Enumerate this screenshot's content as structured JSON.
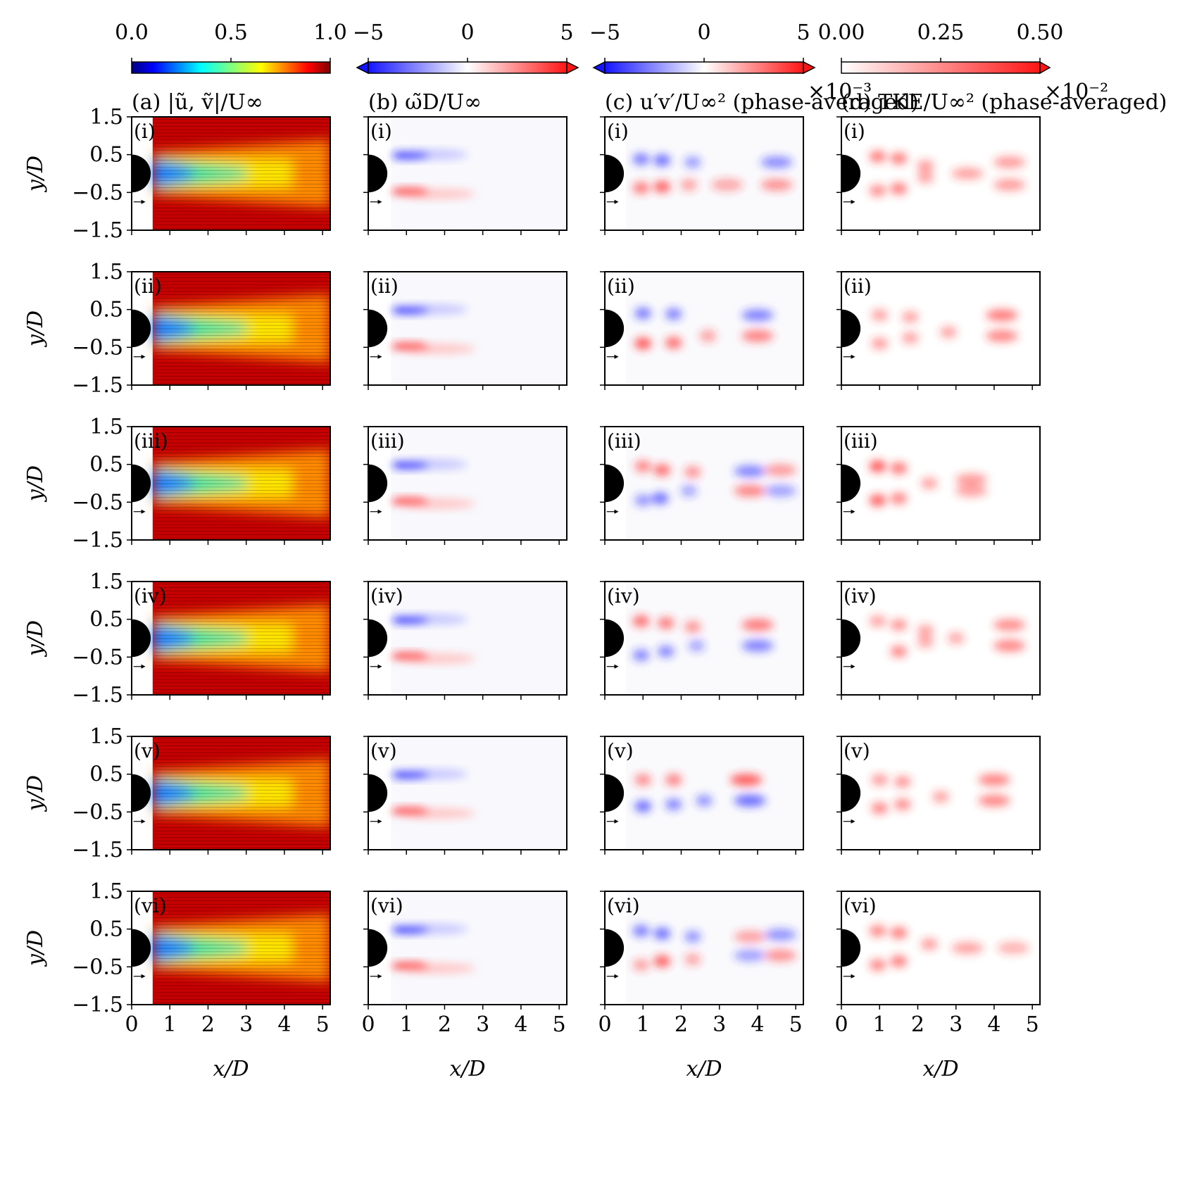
{
  "chart_data": {
    "type": "heatmap",
    "grid": {
      "rows": 6,
      "cols": 4
    },
    "row_labels": [
      "(i)",
      "(ii)",
      "(iii)",
      "(iv)",
      "(v)",
      "(vi)"
    ],
    "xlabel": "x/D",
    "ylabel": "y/D",
    "xlim": [
      0,
      5.2
    ],
    "ylim": [
      -1.5,
      1.5
    ],
    "xticks": [
      "0",
      "1",
      "2",
      "3",
      "4",
      "5"
    ],
    "yticks": [
      "1.5",
      "0.5",
      "−0.5",
      "−1.5"
    ],
    "xtick_values": [
      0,
      1,
      2,
      3,
      4,
      5
    ],
    "ytick_values": [
      1.5,
      0.5,
      -0.5,
      -1.5
    ],
    "cylinder": {
      "center": [
        0,
        0
      ],
      "diameter": 1.0
    },
    "columns": [
      {
        "id": "a",
        "label": "(a)",
        "title": "|ũ, ṽ|/U∞",
        "colormap": "jet",
        "colorbar_range": [
          0,
          1
        ],
        "colorbar_ticks": [
          "0.0",
          "0.5",
          "1.0"
        ],
        "colorbar_multiplier": "",
        "field": "velocity magnitude with velocity vectors"
      },
      {
        "id": "b",
        "label": "(b)",
        "title": "ω̃D/U∞",
        "colormap": "bwr",
        "colorbar_range": [
          -5,
          5
        ],
        "colorbar_ticks": [
          "−5",
          "0",
          "5"
        ],
        "colorbar_multiplier": "",
        "field": "vorticity"
      },
      {
        "id": "c",
        "label": "(c)",
        "title": "u′v′/U∞² (phase-averaged)",
        "colormap": "bwr",
        "colorbar_range": [
          -5,
          5
        ],
        "colorbar_ticks": [
          "−5",
          "0",
          "5"
        ],
        "colorbar_multiplier": "×10⁻³",
        "field": "Reynolds shear stress"
      },
      {
        "id": "d",
        "label": "(d)",
        "title": "TKE/U∞² (phase-averaged)",
        "colormap": "white-red",
        "colorbar_range": [
          0,
          0.5
        ],
        "colorbar_ticks": [
          "0.00",
          "0.25",
          "0.50"
        ],
        "colorbar_multiplier": "×10⁻²",
        "field": "turbulent kinetic energy"
      }
    ],
    "vorticity_blobs": [
      {
        "x": 0.85,
        "y": 0.48,
        "sign": -1,
        "length_end": 2.6,
        "strength": 1.0
      },
      {
        "x": 0.85,
        "y": -0.48,
        "sign": 1,
        "length_end": 2.8,
        "strength": 1.0
      }
    ],
    "stress_rows": [
      [
        {
          "x": 0.95,
          "y": 0.38,
          "v": -0.6
        },
        {
          "x": 1.5,
          "y": 0.35,
          "v": -0.7
        },
        {
          "x": 2.3,
          "y": 0.3,
          "v": -0.35
        },
        {
          "x": 4.5,
          "y": 0.3,
          "v": -0.45
        },
        {
          "x": 0.95,
          "y": -0.38,
          "v": 0.6
        },
        {
          "x": 1.5,
          "y": -0.35,
          "v": 0.8
        },
        {
          "x": 2.2,
          "y": -0.3,
          "v": 0.3
        },
        {
          "x": 3.2,
          "y": -0.3,
          "v": 0.25
        },
        {
          "x": 4.5,
          "y": -0.3,
          "v": 0.4
        }
      ],
      [
        {
          "x": 1.0,
          "y": 0.4,
          "v": -0.6
        },
        {
          "x": 1.8,
          "y": 0.38,
          "v": -0.55
        },
        {
          "x": 4.0,
          "y": 0.35,
          "v": -0.55
        },
        {
          "x": 1.0,
          "y": -0.4,
          "v": 0.9
        },
        {
          "x": 1.8,
          "y": -0.38,
          "v": 0.7
        },
        {
          "x": 2.7,
          "y": -0.2,
          "v": 0.3
        },
        {
          "x": 4.0,
          "y": -0.2,
          "v": 0.55
        }
      ],
      [
        {
          "x": 1.0,
          "y": 0.45,
          "v": 0.5
        },
        {
          "x": 1.5,
          "y": 0.35,
          "v": 0.7
        },
        {
          "x": 2.3,
          "y": 0.3,
          "v": 0.4
        },
        {
          "x": 3.8,
          "y": 0.32,
          "v": -0.5
        },
        {
          "x": 4.6,
          "y": 0.35,
          "v": 0.35
        },
        {
          "x": 1.0,
          "y": -0.45,
          "v": -0.4
        },
        {
          "x": 1.45,
          "y": -0.4,
          "v": -0.7
        },
        {
          "x": 2.2,
          "y": -0.2,
          "v": -0.25
        },
        {
          "x": 3.8,
          "y": -0.2,
          "v": 0.5
        },
        {
          "x": 4.6,
          "y": -0.2,
          "v": -0.3
        }
      ],
      [
        {
          "x": 0.95,
          "y": 0.45,
          "v": 0.7
        },
        {
          "x": 1.6,
          "y": 0.4,
          "v": 0.6
        },
        {
          "x": 2.3,
          "y": 0.3,
          "v": 0.4
        },
        {
          "x": 4.0,
          "y": 0.35,
          "v": 0.6
        },
        {
          "x": 0.95,
          "y": -0.45,
          "v": -0.5
        },
        {
          "x": 1.6,
          "y": -0.35,
          "v": -0.5
        },
        {
          "x": 2.4,
          "y": -0.2,
          "v": -0.25
        },
        {
          "x": 4.0,
          "y": -0.2,
          "v": -0.55
        }
      ],
      [
        {
          "x": 1.0,
          "y": 0.35,
          "v": 0.45
        },
        {
          "x": 1.8,
          "y": 0.35,
          "v": 0.55
        },
        {
          "x": 3.7,
          "y": 0.35,
          "v": 0.8
        },
        {
          "x": 1.0,
          "y": -0.35,
          "v": -0.7
        },
        {
          "x": 1.8,
          "y": -0.3,
          "v": -0.5
        },
        {
          "x": 2.6,
          "y": -0.2,
          "v": -0.4
        },
        {
          "x": 3.8,
          "y": -0.2,
          "v": -0.7
        }
      ],
      [
        {
          "x": 0.95,
          "y": 0.45,
          "v": -0.6
        },
        {
          "x": 1.5,
          "y": 0.38,
          "v": -0.7
        },
        {
          "x": 2.3,
          "y": 0.3,
          "v": -0.4
        },
        {
          "x": 3.8,
          "y": 0.3,
          "v": 0.3
        },
        {
          "x": 4.6,
          "y": 0.35,
          "v": -0.4
        },
        {
          "x": 0.95,
          "y": -0.45,
          "v": 0.3
        },
        {
          "x": 1.5,
          "y": -0.35,
          "v": 0.8
        },
        {
          "x": 2.3,
          "y": -0.3,
          "v": 0.25
        },
        {
          "x": 3.8,
          "y": -0.2,
          "v": -0.3
        },
        {
          "x": 4.6,
          "y": -0.2,
          "v": 0.4
        }
      ]
    ],
    "tke_rows": [
      [
        {
          "x": 0.95,
          "y": 0.45,
          "v": 0.6
        },
        {
          "x": 1.5,
          "y": 0.4,
          "v": 0.6
        },
        {
          "x": 2.2,
          "y": 0.2,
          "v": 0.35
        },
        {
          "x": 3.3,
          "y": 0.0,
          "v": 0.3
        },
        {
          "x": 4.4,
          "y": 0.3,
          "v": 0.35
        },
        {
          "x": 0.95,
          "y": -0.45,
          "v": 0.45
        },
        {
          "x": 1.5,
          "y": -0.4,
          "v": 0.6
        },
        {
          "x": 2.2,
          "y": -0.1,
          "v": 0.3
        },
        {
          "x": 4.4,
          "y": -0.3,
          "v": 0.35
        }
      ],
      [
        {
          "x": 1.0,
          "y": 0.35,
          "v": 0.3
        },
        {
          "x": 1.8,
          "y": 0.3,
          "v": 0.3
        },
        {
          "x": 2.8,
          "y": -0.1,
          "v": 0.3
        },
        {
          "x": 4.2,
          "y": 0.35,
          "v": 0.6
        },
        {
          "x": 1.0,
          "y": -0.4,
          "v": 0.35
        },
        {
          "x": 1.8,
          "y": -0.25,
          "v": 0.3
        },
        {
          "x": 4.2,
          "y": -0.2,
          "v": 0.5
        }
      ],
      [
        {
          "x": 0.95,
          "y": 0.45,
          "v": 0.9
        },
        {
          "x": 1.5,
          "y": 0.4,
          "v": 0.65
        },
        {
          "x": 2.3,
          "y": 0.0,
          "v": 0.3
        },
        {
          "x": 3.4,
          "y": 0.1,
          "v": 0.35
        },
        {
          "x": 0.95,
          "y": -0.45,
          "v": 0.8
        },
        {
          "x": 1.5,
          "y": -0.4,
          "v": 0.55
        },
        {
          "x": 3.4,
          "y": -0.2,
          "v": 0.3
        }
      ],
      [
        {
          "x": 0.95,
          "y": 0.45,
          "v": 0.3
        },
        {
          "x": 1.5,
          "y": 0.35,
          "v": 0.4
        },
        {
          "x": 2.2,
          "y": 0.2,
          "v": 0.3
        },
        {
          "x": 3.0,
          "y": 0.0,
          "v": 0.25
        },
        {
          "x": 4.4,
          "y": 0.35,
          "v": 0.45
        },
        {
          "x": 1.5,
          "y": -0.35,
          "v": 0.5
        },
        {
          "x": 2.2,
          "y": -0.1,
          "v": 0.25
        },
        {
          "x": 4.4,
          "y": -0.2,
          "v": 0.5
        }
      ],
      [
        {
          "x": 1.0,
          "y": 0.35,
          "v": 0.35
        },
        {
          "x": 1.6,
          "y": 0.3,
          "v": 0.4
        },
        {
          "x": 2.6,
          "y": -0.1,
          "v": 0.3
        },
        {
          "x": 4.0,
          "y": 0.35,
          "v": 0.55
        },
        {
          "x": 1.0,
          "y": -0.4,
          "v": 0.5
        },
        {
          "x": 1.6,
          "y": -0.3,
          "v": 0.45
        },
        {
          "x": 4.0,
          "y": -0.2,
          "v": 0.5
        }
      ],
      [
        {
          "x": 0.95,
          "y": 0.45,
          "v": 0.5
        },
        {
          "x": 1.5,
          "y": 0.4,
          "v": 0.6
        },
        {
          "x": 2.3,
          "y": 0.1,
          "v": 0.35
        },
        {
          "x": 3.3,
          "y": 0.0,
          "v": 0.3
        },
        {
          "x": 4.5,
          "y": 0.0,
          "v": 0.2
        },
        {
          "x": 0.95,
          "y": -0.45,
          "v": 0.5
        },
        {
          "x": 1.5,
          "y": -0.35,
          "v": 0.6
        }
      ]
    ]
  }
}
